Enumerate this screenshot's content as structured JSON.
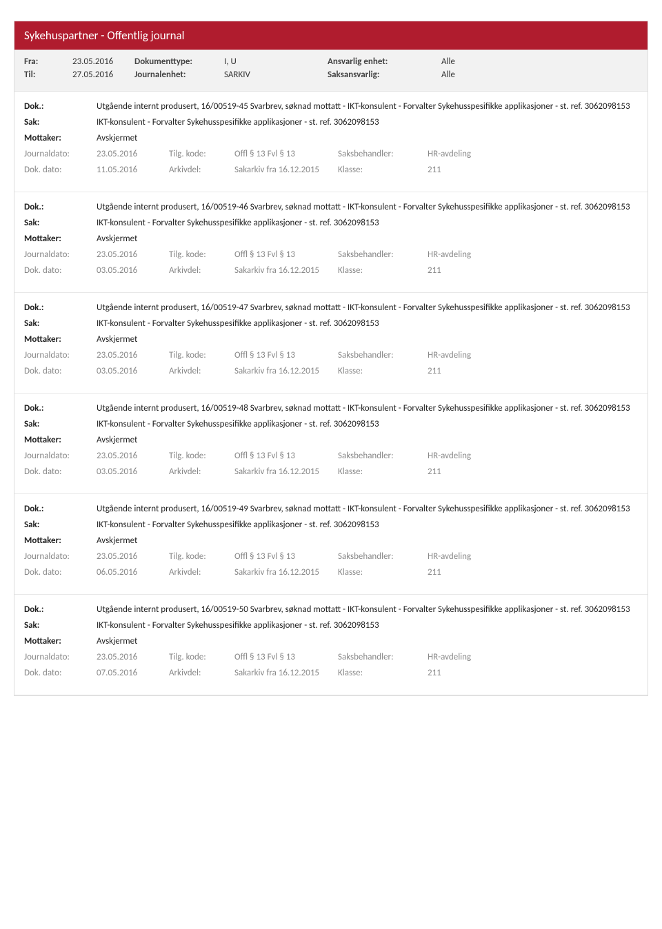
{
  "header": {
    "title": "Sykehuspartner - Offentlig journal",
    "fra_label": "Fra:",
    "fra": "23.05.2016",
    "til_label": "Til:",
    "til": "27.05.2016",
    "dokumenttype_label": "Dokumenttype:",
    "dokumenttype": "I, U",
    "journalenhet_label": "Journalenhet:",
    "journalenhet": "SARKIV",
    "ansvarlig_enhet_label": "Ansvarlig enhet:",
    "ansvarlig_enhet": "Alle",
    "saksansvarlig_label": "Saksansvarlig:",
    "saksansvarlig": "Alle"
  },
  "labels": {
    "dok": "Dok.:",
    "sak": "Sak:",
    "mottaker": "Mottaker:",
    "journaldato": "Journaldato:",
    "dokdato": "Dok. dato:",
    "tilgkode": "Tilg. kode:",
    "arkivdel": "Arkivdel:",
    "saksbehandler": "Saksbehandler:",
    "klasse": "Klasse:"
  },
  "entries": [
    {
      "dok": "Utgående internt produsert, 16/00519-45 Svarbrev, søknad mottatt - IKT-konsulent - Forvalter Sykehusspesifikke applikasjoner - st. ref. 3062098153",
      "sak": "IKT-konsulent - Forvalter Sykehusspesifikke applikasjoner - st. ref. 3062098153",
      "mottaker": "Avskjermet",
      "journaldato": "23.05.2016",
      "tilgkode": "Offl § 13 Fvl § 13",
      "saksbehandler": "HR-avdeling",
      "dokdato": "11.05.2016",
      "arkivdel": "Sakarkiv fra 16.12.2015",
      "klasse": "211"
    },
    {
      "dok": "Utgående internt produsert, 16/00519-46 Svarbrev, søknad mottatt - IKT-konsulent - Forvalter Sykehusspesifikke applikasjoner - st. ref. 3062098153",
      "sak": "IKT-konsulent - Forvalter Sykehusspesifikke applikasjoner - st. ref. 3062098153",
      "mottaker": "Avskjermet",
      "journaldato": "23.05.2016",
      "tilgkode": "Offl § 13 Fvl § 13",
      "saksbehandler": "HR-avdeling",
      "dokdato": "03.05.2016",
      "arkivdel": "Sakarkiv fra 16.12.2015",
      "klasse": "211"
    },
    {
      "dok": "Utgående internt produsert, 16/00519-47 Svarbrev, søknad mottatt - IKT-konsulent - Forvalter Sykehusspesifikke applikasjoner - st. ref. 3062098153",
      "sak": "IKT-konsulent - Forvalter Sykehusspesifikke applikasjoner - st. ref. 3062098153",
      "mottaker": "Avskjermet",
      "journaldato": "23.05.2016",
      "tilgkode": "Offl § 13 Fvl § 13",
      "saksbehandler": "HR-avdeling",
      "dokdato": "03.05.2016",
      "arkivdel": "Sakarkiv fra 16.12.2015",
      "klasse": "211"
    },
    {
      "dok": "Utgående internt produsert, 16/00519-48 Svarbrev, søknad mottatt - IKT-konsulent - Forvalter Sykehusspesifikke applikasjoner - st. ref. 3062098153",
      "sak": "IKT-konsulent - Forvalter Sykehusspesifikke applikasjoner - st. ref. 3062098153",
      "mottaker": "Avskjermet",
      "journaldato": "23.05.2016",
      "tilgkode": "Offl § 13 Fvl § 13",
      "saksbehandler": "HR-avdeling",
      "dokdato": "03.05.2016",
      "arkivdel": "Sakarkiv fra 16.12.2015",
      "klasse": "211"
    },
    {
      "dok": "Utgående internt produsert, 16/00519-49 Svarbrev, søknad mottatt - IKT-konsulent - Forvalter Sykehusspesifikke applikasjoner - st. ref. 3062098153",
      "sak": "IKT-konsulent - Forvalter Sykehusspesifikke applikasjoner - st. ref. 3062098153",
      "mottaker": "Avskjermet",
      "journaldato": "23.05.2016",
      "tilgkode": "Offl § 13 Fvl § 13",
      "saksbehandler": "HR-avdeling",
      "dokdato": "06.05.2016",
      "arkivdel": "Sakarkiv fra 16.12.2015",
      "klasse": "211"
    },
    {
      "dok": "Utgående internt produsert, 16/00519-50 Svarbrev, søknad mottatt - IKT-konsulent - Forvalter Sykehusspesifikke applikasjoner - st. ref. 3062098153",
      "sak": "IKT-konsulent - Forvalter Sykehusspesifikke applikasjoner - st. ref. 3062098153",
      "mottaker": "Avskjermet",
      "journaldato": "23.05.2016",
      "tilgkode": "Offl § 13 Fvl § 13",
      "saksbehandler": "HR-avdeling",
      "dokdato": "07.05.2016",
      "arkivdel": "Sakarkiv fra 16.12.2015",
      "klasse": "211"
    }
  ]
}
